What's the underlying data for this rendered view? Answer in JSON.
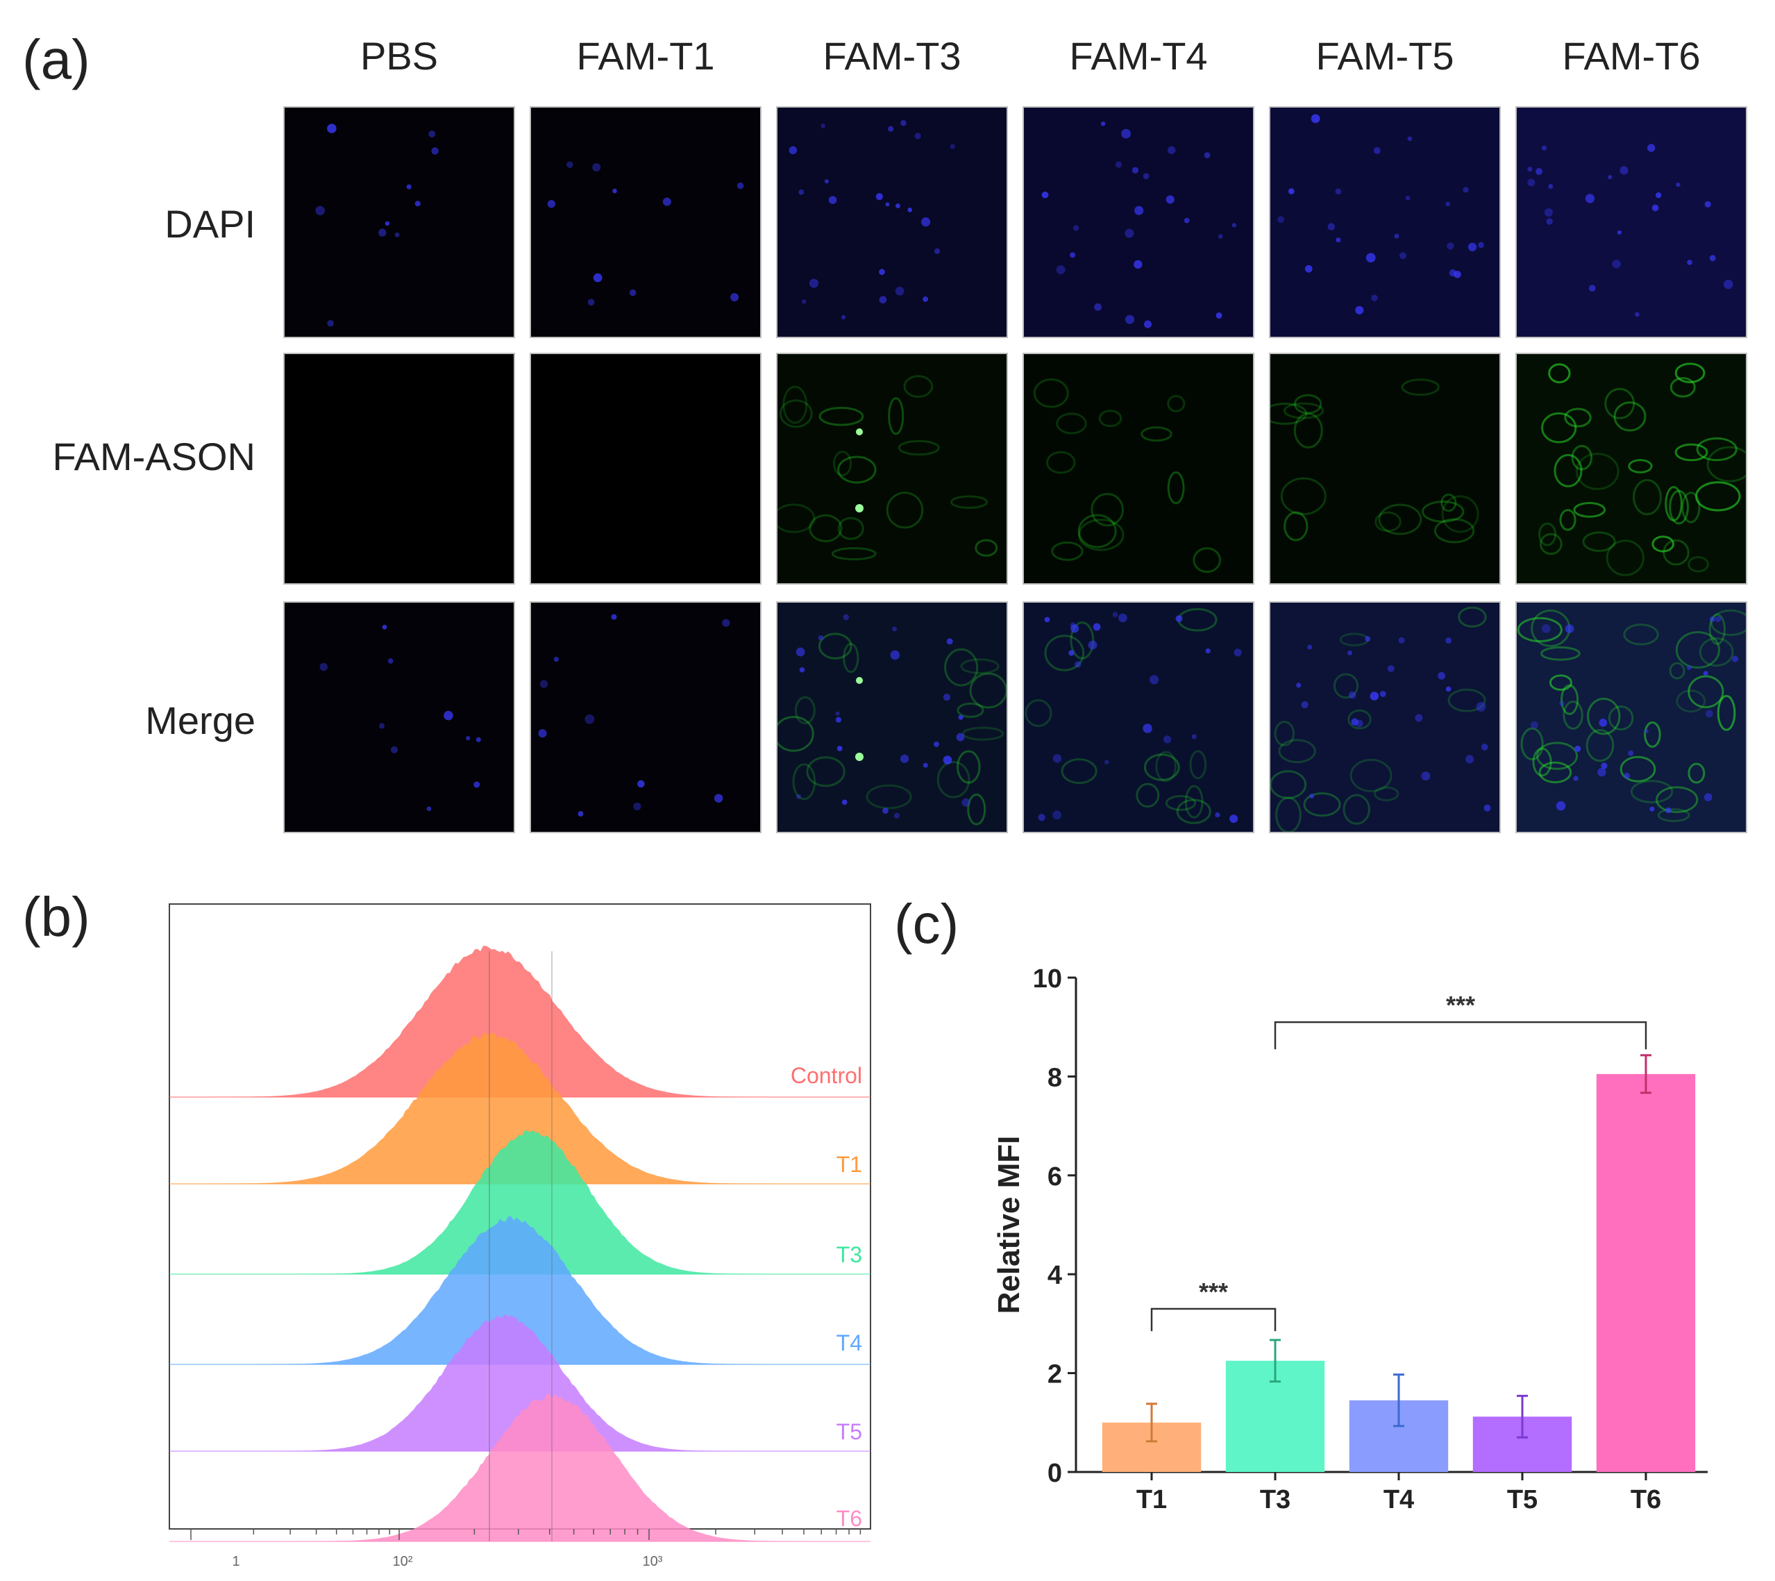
{
  "panel_a": {
    "label": "(a)",
    "columns": [
      "PBS",
      "FAM-T1",
      "FAM-T3",
      "FAM-T4",
      "FAM-T5",
      "FAM-T6"
    ],
    "rows": [
      "DAPI",
      "FAM-ASON",
      "Merge"
    ],
    "green_intensity": [
      0,
      0,
      0.45,
      0.3,
      0.35,
      0.95
    ],
    "blue_color": "#2a2ad8",
    "green_color": "#28e028"
  },
  "panel_b": {
    "label": "(b)",
    "x_tick_labels": [
      "1",
      "10²",
      "10³"
    ],
    "histograms": [
      {
        "name": "Control",
        "color": "#ff6f6f"
      },
      {
        "name": "T1",
        "color": "#ff9a3c"
      },
      {
        "name": "T3",
        "color": "#3ee8a0"
      },
      {
        "name": "T4",
        "color": "#5fa8ff"
      },
      {
        "name": "T5",
        "color": "#c77dff"
      },
      {
        "name": "T6",
        "color": "#ff8cc6"
      }
    ]
  },
  "panel_c": {
    "label": "(c)",
    "chart_data": {
      "type": "bar",
      "categories": [
        "T1",
        "T3",
        "T4",
        "T5",
        "T6"
      ],
      "values": [
        1.0,
        2.25,
        1.45,
        1.12,
        8.05
      ],
      "errors": [
        0.38,
        0.42,
        0.52,
        0.42,
        0.38
      ],
      "colors": [
        "#ffb07a",
        "#5ff5c8",
        "#8b9cff",
        "#b36dff",
        "#ff6fbe"
      ],
      "error_colors": [
        "#d07a3a",
        "#2aa87a",
        "#3a6ad0",
        "#7a3ad0",
        "#c0306a"
      ],
      "ylabel": "Relative MFI",
      "ylim": [
        0,
        10
      ],
      "yticks": [
        0,
        2,
        4,
        6,
        8,
        10
      ],
      "significance": [
        {
          "from": "T1",
          "to": "T3",
          "label": "***"
        },
        {
          "from": "T3",
          "to": "T6",
          "label": "***"
        }
      ]
    }
  }
}
